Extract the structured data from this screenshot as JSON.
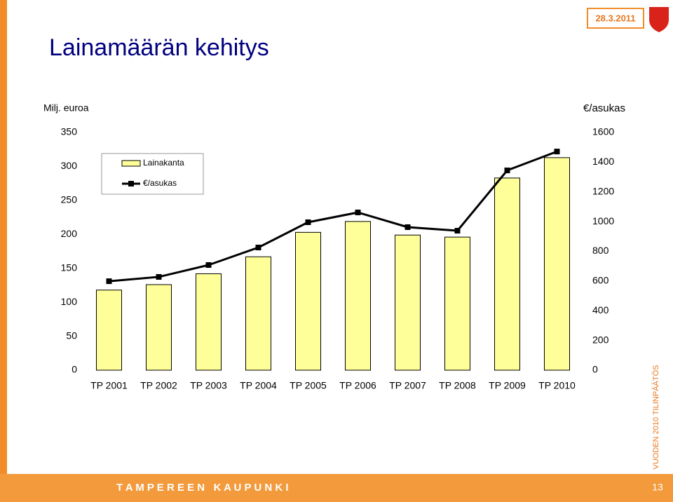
{
  "slide": {
    "date": "28.3.2011",
    "title": "Lainamäärän kehitys",
    "side_text": "VUODEN 2010 TILINPÄÄTÖS",
    "footer": "T A M P E R E E N   K A U P U N K I",
    "page": "13"
  },
  "chart_data": {
    "type": "bar-line",
    "y_label": "Milj. euroa",
    "y2_label": "€/asukas",
    "categories": [
      "TP 2001",
      "TP 2002",
      "TP 2003",
      "TP 2004",
      "TP 2005",
      "TP 2006",
      "TP 2007",
      "TP 2008",
      "TP 2009",
      "TP 2010"
    ],
    "series": [
      {
        "name": "Lainakanta",
        "type": "bar",
        "color": "#ffff99",
        "values": [
          118,
          126,
          142,
          167,
          203,
          219,
          199,
          196,
          283,
          313
        ]
      },
      {
        "name": "€/asukas",
        "type": "line",
        "axis": "y2",
        "color": "#000000",
        "values": [
          599,
          628,
          708,
          826,
          996,
          1062,
          963,
          939,
          1345,
          1472
        ]
      }
    ],
    "ylim": [
      0,
      350
    ],
    "yticks": [
      0,
      50,
      100,
      150,
      200,
      250,
      300,
      350
    ],
    "y2lim": [
      0,
      1600
    ],
    "y2ticks": [
      0,
      200,
      400,
      600,
      800,
      1000,
      1200,
      1400,
      1600
    ],
    "legend": "top-left"
  }
}
